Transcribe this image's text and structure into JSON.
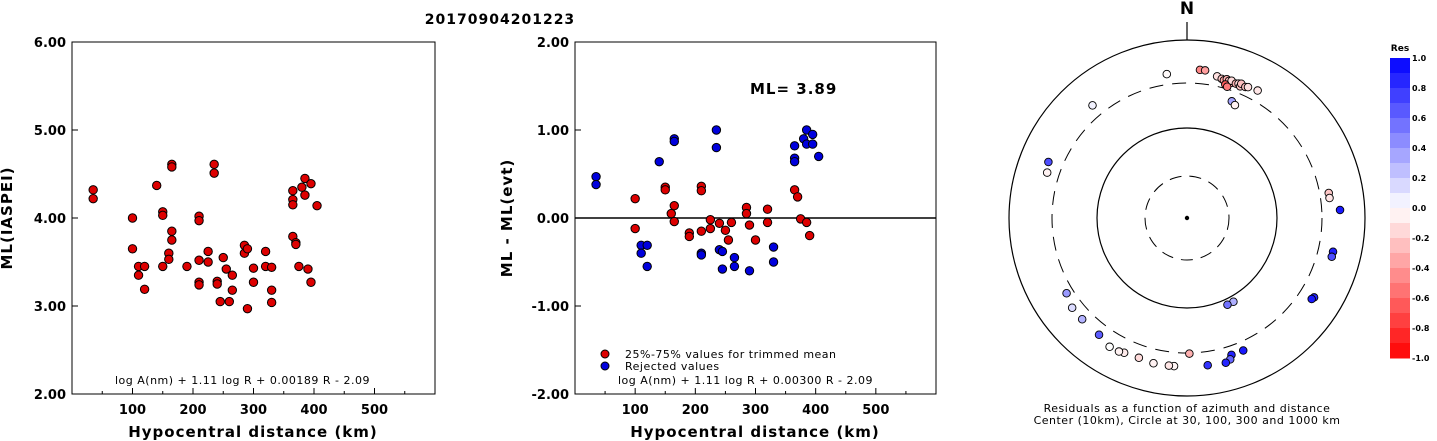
{
  "title": "20170904201223",
  "chart_data": [
    {
      "type": "scatter",
      "xlabel": "Hypocentral distance (km)",
      "ylabel": "ML(IASPEI)",
      "xlim": [
        0,
        600
      ],
      "ylim": [
        2.0,
        6.0
      ],
      "xticks": [
        "100",
        "200",
        "300",
        "400",
        "500"
      ],
      "yticks": [
        "2.00",
        "3.00",
        "4.00",
        "5.00",
        "6.00"
      ],
      "annotation": "log A(nm) + 1.11 log R + 0.00189 R - 2.09",
      "series": [
        {
          "color": "#dd0000",
          "points": [
            [
              35,
              4.32
            ],
            [
              35,
              4.22
            ],
            [
              100,
              4.0
            ],
            [
              100,
              3.65
            ],
            [
              110,
              3.45
            ],
            [
              110,
              3.35
            ],
            [
              120,
              3.45
            ],
            [
              120,
              3.19
            ],
            [
              140,
              4.37
            ],
            [
              150,
              4.07
            ],
            [
              150,
              4.03
            ],
            [
              150,
              3.45
            ],
            [
              160,
              3.6
            ],
            [
              160,
              3.53
            ],
            [
              165,
              4.61
            ],
            [
              165,
              4.58
            ],
            [
              165,
              3.85
            ],
            [
              165,
              3.75
            ],
            [
              190,
              3.45
            ],
            [
              210,
              4.02
            ],
            [
              210,
              3.97
            ],
            [
              210,
              3.52
            ],
            [
              210,
              3.27
            ],
            [
              210,
              3.24
            ],
            [
              225,
              3.62
            ],
            [
              225,
              3.5
            ],
            [
              235,
              4.61
            ],
            [
              235,
              4.51
            ],
            [
              240,
              3.28
            ],
            [
              240,
              3.25
            ],
            [
              245,
              3.05
            ],
            [
              250,
              3.55
            ],
            [
              255,
              3.42
            ],
            [
              260,
              3.05
            ],
            [
              265,
              3.35
            ],
            [
              265,
              3.18
            ],
            [
              285,
              3.69
            ],
            [
              285,
              3.6
            ],
            [
              290,
              3.65
            ],
            [
              290,
              2.97
            ],
            [
              300,
              3.43
            ],
            [
              300,
              3.27
            ],
            [
              320,
              3.62
            ],
            [
              320,
              3.45
            ],
            [
              330,
              3.44
            ],
            [
              330,
              3.18
            ],
            [
              330,
              3.04
            ],
            [
              365,
              4.31
            ],
            [
              365,
              4.21
            ],
            [
              365,
              4.15
            ],
            [
              365,
              3.79
            ],
            [
              370,
              3.72
            ],
            [
              370,
              3.7
            ],
            [
              375,
              3.45
            ],
            [
              380,
              4.35
            ],
            [
              385,
              4.45
            ],
            [
              385,
              4.26
            ],
            [
              390,
              3.42
            ],
            [
              395,
              4.39
            ],
            [
              395,
              3.27
            ],
            [
              405,
              4.14
            ]
          ]
        }
      ]
    },
    {
      "type": "scatter",
      "xlabel": "Hypocentral distance (km)",
      "ylabel": "ML - ML(evt)",
      "xlim": [
        0,
        600
      ],
      "ylim": [
        -2.0,
        2.0
      ],
      "xticks": [
        "100",
        "200",
        "300",
        "400",
        "500"
      ],
      "yticks": [
        "-2.00",
        "-1.00",
        "0.00",
        "1.00",
        "2.00"
      ],
      "ml_label": "ML= 3.89",
      "annotation": "log A(nm) + 1.11 log R + 0.00300 R - 2.09",
      "legend": [
        {
          "color": "#dd0000",
          "label": "25%-75% values for trimmed mean"
        },
        {
          "color": "#0000dd",
          "label": "Rejected values"
        }
      ],
      "series": [
        {
          "name": "25%-75% values for trimmed mean",
          "color": "#dd0000",
          "points": [
            [
              100,
              0.22
            ],
            [
              100,
              -0.12
            ],
            [
              150,
              0.35
            ],
            [
              150,
              0.32
            ],
            [
              160,
              0.05
            ],
            [
              165,
              0.14
            ],
            [
              165,
              -0.04
            ],
            [
              190,
              -0.17
            ],
            [
              190,
              -0.21
            ],
            [
              210,
              0.36
            ],
            [
              210,
              0.31
            ],
            [
              210,
              -0.15
            ],
            [
              225,
              -0.02
            ],
            [
              225,
              -0.12
            ],
            [
              240,
              -0.06
            ],
            [
              250,
              -0.14
            ],
            [
              255,
              -0.25
            ],
            [
              260,
              -0.05
            ],
            [
              285,
              0.12
            ],
            [
              285,
              0.05
            ],
            [
              290,
              -0.08
            ],
            [
              300,
              -0.25
            ],
            [
              320,
              0.1
            ],
            [
              320,
              -0.05
            ],
            [
              365,
              0.32
            ],
            [
              370,
              0.24
            ],
            [
              375,
              -0.01
            ],
            [
              385,
              -0.05
            ],
            [
              390,
              -0.2
            ]
          ]
        },
        {
          "name": "Rejected values",
          "color": "#0000dd",
          "points": [
            [
              35,
              0.47
            ],
            [
              35,
              0.38
            ],
            [
              110,
              -0.31
            ],
            [
              110,
              -0.4
            ],
            [
              120,
              -0.31
            ],
            [
              120,
              -0.55
            ],
            [
              140,
              0.64
            ],
            [
              165,
              0.9
            ],
            [
              165,
              0.87
            ],
            [
              210,
              -0.4
            ],
            [
              210,
              -0.42
            ],
            [
              235,
              1.0
            ],
            [
              235,
              0.8
            ],
            [
              240,
              -0.36
            ],
            [
              245,
              -0.38
            ],
            [
              245,
              -0.58
            ],
            [
              265,
              -0.55
            ],
            [
              265,
              -0.45
            ],
            [
              290,
              -0.6
            ],
            [
              330,
              -0.33
            ],
            [
              330,
              -0.5
            ],
            [
              365,
              0.82
            ],
            [
              365,
              0.68
            ],
            [
              365,
              0.64
            ],
            [
              380,
              0.9
            ],
            [
              385,
              1.0
            ],
            [
              385,
              0.84
            ],
            [
              395,
              0.95
            ],
            [
              395,
              0.84
            ],
            [
              405,
              0.7
            ]
          ]
        }
      ]
    },
    {
      "type": "scatter",
      "north_label": "N",
      "caption_line1": "Residuals as a function of azimuth and distance",
      "caption_line2": "Center (10km), Circle at 30, 100, 300 and 1000 km",
      "colorbar_title": "Res",
      "colorbar_ticks": [
        "1.0",
        "0.8",
        "0.6",
        "0.4",
        "0.2",
        "0.0",
        "-0.2",
        "-0.4",
        "-0.6",
        "-0.8",
        "-1.0"
      ],
      "stations": [
        {
          "az": 5,
          "dist": 440,
          "res": -0.47
        },
        {
          "az": 7,
          "dist": 440,
          "res": -0.38
        },
        {
          "az": 12,
          "dist": 395,
          "res": -0.12
        },
        {
          "az": 14,
          "dist": 380,
          "res": -0.22
        },
        {
          "az": 15,
          "dist": 370,
          "res": -0.35
        },
        {
          "az": 16,
          "dist": 390,
          "res": -0.31
        },
        {
          "az": 17,
          "dist": 380,
          "res": -0.24
        },
        {
          "az": 18,
          "dist": 365,
          "res": -0.32
        },
        {
          "az": 18,
          "dist": 390,
          "res": -0.14
        },
        {
          "az": 20,
          "dist": 375,
          "res": -0.3
        },
        {
          "az": 21,
          "dist": 385,
          "res": -0.15
        },
        {
          "az": 22,
          "dist": 365,
          "res": -0.22
        },
        {
          "az": 22,
          "dist": 395,
          "res": -0.25
        },
        {
          "az": 24,
          "dist": 380,
          "res": -0.26
        },
        {
          "az": 25,
          "dist": 390,
          "res": -0.12
        },
        {
          "az": 29,
          "dist": 405,
          "res": -0.1
        },
        {
          "az": 16,
          "dist": 335,
          "res": -0.64
        },
        {
          "az": 17,
          "dist": 320,
          "res": -0.52
        },
        {
          "az": 21,
          "dist": 235,
          "res": 0.36
        },
        {
          "az": 23,
          "dist": 222,
          "res": -0.05
        },
        {
          "az": 352,
          "dist": 400,
          "res": -0.02
        },
        {
          "az": 151,
          "dist": 115,
          "res": 0.31
        },
        {
          "az": 155,
          "dist": 115,
          "res": 0.55
        },
        {
          "az": 80,
          "dist": 385,
          "res": -0.22
        },
        {
          "az": 82,
          "dist": 385,
          "res": -0.1
        },
        {
          "az": 87,
          "dist": 500,
          "res": 0.9
        },
        {
          "az": 103,
          "dist": 455,
          "res": 0.88
        },
        {
          "az": 105,
          "dist": 455,
          "res": 0.7
        },
        {
          "az": 122,
          "dist": 455,
          "res": 0.85
        },
        {
          "az": 123,
          "dist": 440,
          "res": 0.9
        },
        {
          "az": 157,
          "dist": 385,
          "res": 0.9
        },
        {
          "az": 162,
          "dist": 385,
          "res": 0.87
        },
        {
          "az": 163,
          "dist": 430,
          "res": 0.6
        },
        {
          "az": 165,
          "dist": 455,
          "res": 0.85
        },
        {
          "az": 172,
          "dist": 440,
          "res": 0.8
        },
        {
          "az": 179,
          "dist": 305,
          "res": -0.31
        },
        {
          "az": 185,
          "dist": 440,
          "res": -0.04
        },
        {
          "az": 187,
          "dist": 440,
          "res": -0.1
        },
        {
          "az": 193,
          "dist": 445,
          "res": -0.05
        },
        {
          "az": 199,
          "dist": 430,
          "res": -0.14
        },
        {
          "az": 205,
          "dist": 440,
          "res": -0.08
        },
        {
          "az": 207,
          "dist": 455,
          "res": -0.05
        },
        {
          "az": 211,
          "dist": 460,
          "res": 0.0
        },
        {
          "az": 217,
          "dist": 410,
          "res": 0.64
        },
        {
          "az": 226,
          "dist": 405,
          "res": 0.3
        },
        {
          "az": 232,
          "dist": 405,
          "res": 0.14
        },
        {
          "az": 238,
          "dist": 365,
          "res": 0.4
        },
        {
          "az": 288,
          "dist": 420,
          "res": -0.05
        },
        {
          "az": 292,
          "dist": 450,
          "res": 0.7
        },
        {
          "az": 320,
          "dist": 420,
          "res": 0.05
        }
      ]
    }
  ]
}
